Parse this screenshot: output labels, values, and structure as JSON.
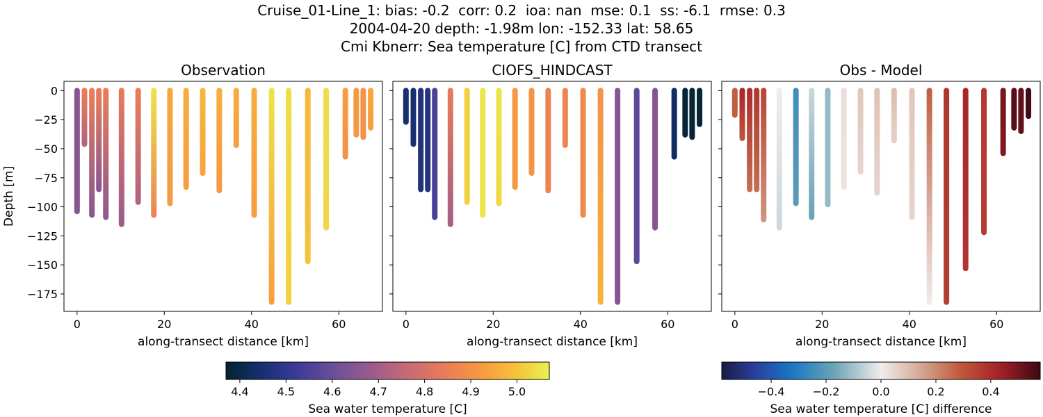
{
  "figure": {
    "title_lines": [
      "Cruise_01-Line_1: bias: -0.2  corr: 0.2  ioa: nan  mse: 0.1  ss: -6.1  rmse: 0.3",
      "2004-04-20 depth: -1.98m lon: -152.33 lat: 58.65",
      "Cmi Kbnerr: Sea temperature [C] from CTD transect"
    ]
  },
  "chart_data": [
    {
      "type": "scatter",
      "title": "Observation",
      "xlabel": "along-transect distance [km]",
      "ylabel": "Depth [m]",
      "xlim": [
        -3,
        70
      ],
      "ylim": [
        -190,
        8
      ],
      "x_ticks": [
        0,
        20,
        40,
        60
      ],
      "y_ticks": [
        0,
        -25,
        -50,
        -75,
        -100,
        -125,
        -150,
        -175
      ],
      "x_tick_labels": [
        "0",
        "20",
        "40",
        "60"
      ],
      "y_tick_labels": [
        "0",
        "−25",
        "−50",
        "−75",
        "−100",
        "−125",
        "−150",
        "−175"
      ],
      "colormap": "thermal",
      "clim": [
        4.37,
        5.07
      ],
      "casts": [
        {
          "x": 0.0,
          "depth": 104,
          "top": 4.65,
          "bottom": 4.65
        },
        {
          "x": 1.7,
          "depth": 46,
          "top": 4.85,
          "bottom": 4.72
        },
        {
          "x": 3.4,
          "depth": 107,
          "top": 4.85,
          "bottom": 4.65
        },
        {
          "x": 5.0,
          "depth": 85,
          "top": 4.85,
          "bottom": 4.65
        },
        {
          "x": 6.6,
          "depth": 109,
          "top": 4.85,
          "bottom": 4.66
        },
        {
          "x": 10.2,
          "depth": 115,
          "top": 4.84,
          "bottom": 4.68
        },
        {
          "x": 14.0,
          "depth": 96,
          "top": 4.85,
          "bottom": 4.72
        },
        {
          "x": 17.6,
          "depth": 107,
          "top": 5.05,
          "bottom": 4.86
        },
        {
          "x": 21.3,
          "depth": 97,
          "top": 4.95,
          "bottom": 4.92
        },
        {
          "x": 25.0,
          "depth": 83,
          "top": 4.96,
          "bottom": 4.93
        },
        {
          "x": 28.8,
          "depth": 71,
          "top": 4.98,
          "bottom": 4.94
        },
        {
          "x": 32.6,
          "depth": 86,
          "top": 4.96,
          "bottom": 4.92
        },
        {
          "x": 36.5,
          "depth": 47,
          "top": 4.96,
          "bottom": 4.93
        },
        {
          "x": 40.6,
          "depth": 107,
          "top": 4.96,
          "bottom": 4.93
        },
        {
          "x": 44.6,
          "depth": 182,
          "top": 5.05,
          "bottom": 4.93
        },
        {
          "x": 48.5,
          "depth": 182,
          "top": 5.04,
          "bottom": 5.02
        },
        {
          "x": 52.9,
          "depth": 147,
          "top": 4.98,
          "bottom": 5.0
        },
        {
          "x": 57.1,
          "depth": 118,
          "top": 5.04,
          "bottom": 5.03
        },
        {
          "x": 61.5,
          "depth": 57,
          "top": 4.93,
          "bottom": 4.9
        },
        {
          "x": 64.0,
          "depth": 38,
          "top": 4.92,
          "bottom": 4.92
        },
        {
          "x": 65.6,
          "depth": 40,
          "top": 4.91,
          "bottom": 4.9
        },
        {
          "x": 67.3,
          "depth": 32,
          "top": 4.95,
          "bottom": 4.93
        }
      ]
    },
    {
      "type": "scatter",
      "title": "CIOFS_HINDCAST",
      "xlabel": "along-transect distance [km]",
      "ylabel": "",
      "xlim": [
        -3,
        70
      ],
      "ylim": [
        -190,
        8
      ],
      "x_ticks": [
        0,
        20,
        40,
        60
      ],
      "x_tick_labels": [
        "0",
        "20",
        "40",
        "60"
      ],
      "colormap": "thermal",
      "clim": [
        4.37,
        5.07
      ],
      "casts": [
        {
          "x": 0.0,
          "depth": 27,
          "top": 4.45,
          "bottom": 4.45
        },
        {
          "x": 1.7,
          "depth": 46,
          "top": 4.45,
          "bottom": 4.45
        },
        {
          "x": 3.4,
          "depth": 85,
          "top": 4.47,
          "bottom": 4.47
        },
        {
          "x": 5.0,
          "depth": 85,
          "top": 4.48,
          "bottom": 4.48
        },
        {
          "x": 6.6,
          "depth": 109,
          "top": 4.55,
          "bottom": 4.55
        },
        {
          "x": 10.2,
          "depth": 115,
          "top": 4.84,
          "bottom": 4.7
        },
        {
          "x": 14.0,
          "depth": 96,
          "top": 5.02,
          "bottom": 5.02
        },
        {
          "x": 17.6,
          "depth": 107,
          "top": 5.05,
          "bottom": 5.05
        },
        {
          "x": 21.3,
          "depth": 97,
          "top": 5.05,
          "bottom": 5.03
        },
        {
          "x": 25.0,
          "depth": 83,
          "top": 4.92,
          "bottom": 4.92
        },
        {
          "x": 28.8,
          "depth": 71,
          "top": 4.91,
          "bottom": 4.91
        },
        {
          "x": 32.6,
          "depth": 86,
          "top": 4.86,
          "bottom": 4.86
        },
        {
          "x": 36.5,
          "depth": 47,
          "top": 4.87,
          "bottom": 4.87
        },
        {
          "x": 40.6,
          "depth": 107,
          "top": 4.88,
          "bottom": 4.88
        },
        {
          "x": 44.6,
          "depth": 182,
          "top": 4.9,
          "bottom": 4.97
        },
        {
          "x": 48.5,
          "depth": 182,
          "top": 4.65,
          "bottom": 4.65
        },
        {
          "x": 52.9,
          "depth": 147,
          "top": 4.58,
          "bottom": 4.58
        },
        {
          "x": 57.1,
          "depth": 118,
          "top": 4.65,
          "bottom": 4.65
        },
        {
          "x": 61.5,
          "depth": 57,
          "top": 4.43,
          "bottom": 4.43
        },
        {
          "x": 64.0,
          "depth": 38,
          "top": 4.38,
          "bottom": 4.38
        },
        {
          "x": 65.6,
          "depth": 40,
          "top": 4.38,
          "bottom": 4.38
        },
        {
          "x": 67.3,
          "depth": 29,
          "top": 4.38,
          "bottom": 4.38
        }
      ]
    },
    {
      "type": "scatter",
      "title": "Obs - Model",
      "xlabel": "along-transect distance [km]",
      "ylabel": "",
      "xlim": [
        -3,
        70
      ],
      "ylim": [
        -190,
        8
      ],
      "x_ticks": [
        0,
        20,
        40,
        60
      ],
      "x_tick_labels": [
        "0",
        "20",
        "40",
        "60"
      ],
      "colormap": "balance",
      "clim": [
        -0.58,
        0.58
      ],
      "casts": [
        {
          "x": 0.0,
          "depth": 21,
          "top": 0.28,
          "bottom": 0.28
        },
        {
          "x": 1.7,
          "depth": 41,
          "top": 0.42,
          "bottom": 0.3
        },
        {
          "x": 3.4,
          "depth": 85,
          "top": 0.4,
          "bottom": 0.25
        },
        {
          "x": 5.0,
          "depth": 85,
          "top": 0.38,
          "bottom": 0.25
        },
        {
          "x": 6.6,
          "depth": 111,
          "top": 0.34,
          "bottom": 0.18
        },
        {
          "x": 10.2,
          "depth": 118,
          "top": 0.0,
          "bottom": -0.05
        },
        {
          "x": 14.0,
          "depth": 97,
          "top": -0.25,
          "bottom": -0.2
        },
        {
          "x": 17.6,
          "depth": 109,
          "top": -0.05,
          "bottom": -0.18
        },
        {
          "x": 21.3,
          "depth": 98,
          "top": -0.12,
          "bottom": -0.12
        },
        {
          "x": 25.0,
          "depth": 83,
          "top": 0.03,
          "bottom": 0.02
        },
        {
          "x": 28.8,
          "depth": 70,
          "top": 0.08,
          "bottom": 0.05
        },
        {
          "x": 32.6,
          "depth": 88,
          "top": 0.09,
          "bottom": 0.05
        },
        {
          "x": 36.5,
          "depth": 43,
          "top": 0.1,
          "bottom": 0.06
        },
        {
          "x": 40.6,
          "depth": 109,
          "top": 0.08,
          "bottom": 0.05
        },
        {
          "x": 44.6,
          "depth": 182,
          "top": 0.28,
          "bottom": 0.0
        },
        {
          "x": 48.5,
          "depth": 182,
          "top": 0.38,
          "bottom": 0.36
        },
        {
          "x": 52.9,
          "depth": 153,
          "top": 0.42,
          "bottom": 0.38
        },
        {
          "x": 57.1,
          "depth": 122,
          "top": 0.37,
          "bottom": 0.36
        },
        {
          "x": 61.5,
          "depth": 54,
          "top": 0.5,
          "bottom": 0.48
        },
        {
          "x": 64.0,
          "depth": 32,
          "top": 0.54,
          "bottom": 0.54
        },
        {
          "x": 65.6,
          "depth": 35,
          "top": 0.53,
          "bottom": 0.53
        },
        {
          "x": 67.3,
          "depth": 22,
          "top": 0.57,
          "bottom": 0.57
        }
      ]
    }
  ],
  "colorbars": [
    {
      "label": "Sea water temperature [C]",
      "colormap": "thermal",
      "range": [
        4.37,
        5.07
      ],
      "ticks": [
        4.4,
        4.5,
        4.6,
        4.7,
        4.8,
        4.9,
        5.0
      ],
      "tick_labels": [
        "4.4",
        "4.5",
        "4.6",
        "4.7",
        "4.8",
        "4.9",
        "5.0"
      ]
    },
    {
      "label": "Sea water temperature [C] difference",
      "colormap": "balance",
      "range": [
        -0.58,
        0.58
      ],
      "ticks": [
        -0.4,
        -0.2,
        0.0,
        0.2,
        0.4
      ],
      "tick_labels": [
        "−0.4",
        "−0.2",
        "0.0",
        "0.2",
        "0.4"
      ]
    }
  ]
}
